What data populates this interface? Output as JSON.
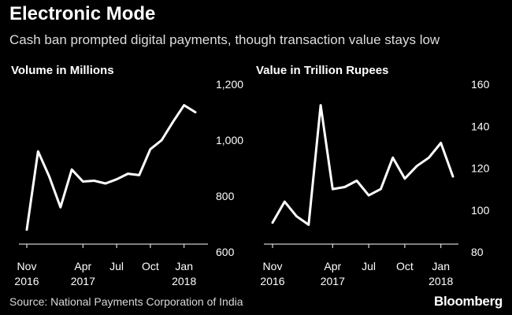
{
  "header": {
    "title": "Electronic Mode",
    "subtitle": "Cash ban prompted digital payments, though transaction value stays low"
  },
  "footer": {
    "source": "Source: National Payments Corporation of India",
    "brand": "Bloomberg"
  },
  "colors": {
    "background": "#000000",
    "line": "#ffffff",
    "text": "#ffffff",
    "subtext": "#dddddd"
  },
  "chart_data": [
    {
      "type": "line",
      "title": "Volume in Millions",
      "xlabel": "",
      "ylabel": "",
      "ylim": [
        600,
        1200
      ],
      "yticks": [
        600,
        800,
        1000,
        1200
      ],
      "ytick_labels": [
        "600",
        "800",
        "1,000",
        "1,200"
      ],
      "y_axis_position": "right",
      "grid": false,
      "x": [
        "2016-11",
        "2016-12",
        "2017-01",
        "2017-02",
        "2017-03",
        "2017-04",
        "2017-05",
        "2017-06",
        "2017-07",
        "2017-08",
        "2017-09",
        "2017-10",
        "2017-11",
        "2017-12",
        "2018-01",
        "2018-02"
      ],
      "xticks": [
        {
          "x": "2016-11",
          "label": "Nov",
          "sublabel": "2016"
        },
        {
          "x": "2017-04",
          "label": "Apr",
          "sublabel": "2017"
        },
        {
          "x": "2017-07",
          "label": "Jul",
          "sublabel": ""
        },
        {
          "x": "2017-10",
          "label": "Oct",
          "sublabel": ""
        },
        {
          "x": "2018-01",
          "label": "Jan",
          "sublabel": "2018"
        }
      ],
      "series": [
        {
          "values": [
            680,
            960,
            870,
            760,
            895,
            852,
            855,
            845,
            860,
            880,
            875,
            968,
            1000,
            1065,
            1125,
            1100
          ]
        }
      ]
    },
    {
      "type": "line",
      "title": "Value in Trillion Rupees",
      "xlabel": "",
      "ylabel": "",
      "ylim": [
        80,
        160
      ],
      "yticks": [
        80,
        100,
        120,
        140,
        160
      ],
      "ytick_labels": [
        "80",
        "100",
        "120",
        "140",
        "160"
      ],
      "y_axis_position": "right",
      "grid": false,
      "x": [
        "2016-11",
        "2016-12",
        "2017-01",
        "2017-02",
        "2017-03",
        "2017-04",
        "2017-05",
        "2017-06",
        "2017-07",
        "2017-08",
        "2017-09",
        "2017-10",
        "2017-11",
        "2017-12",
        "2018-01",
        "2018-02"
      ],
      "xticks": [
        {
          "x": "2016-11",
          "label": "Nov",
          "sublabel": "2016"
        },
        {
          "x": "2017-04",
          "label": "Apr",
          "sublabel": "2017"
        },
        {
          "x": "2017-07",
          "label": "Jul",
          "sublabel": ""
        },
        {
          "x": "2017-10",
          "label": "Oct",
          "sublabel": ""
        },
        {
          "x": "2018-01",
          "label": "Jan",
          "sublabel": "2018"
        }
      ],
      "series": [
        {
          "values": [
            94,
            104,
            97,
            93,
            150,
            110,
            111,
            114,
            107,
            110,
            125,
            115,
            121,
            125,
            132,
            116
          ]
        }
      ]
    }
  ]
}
